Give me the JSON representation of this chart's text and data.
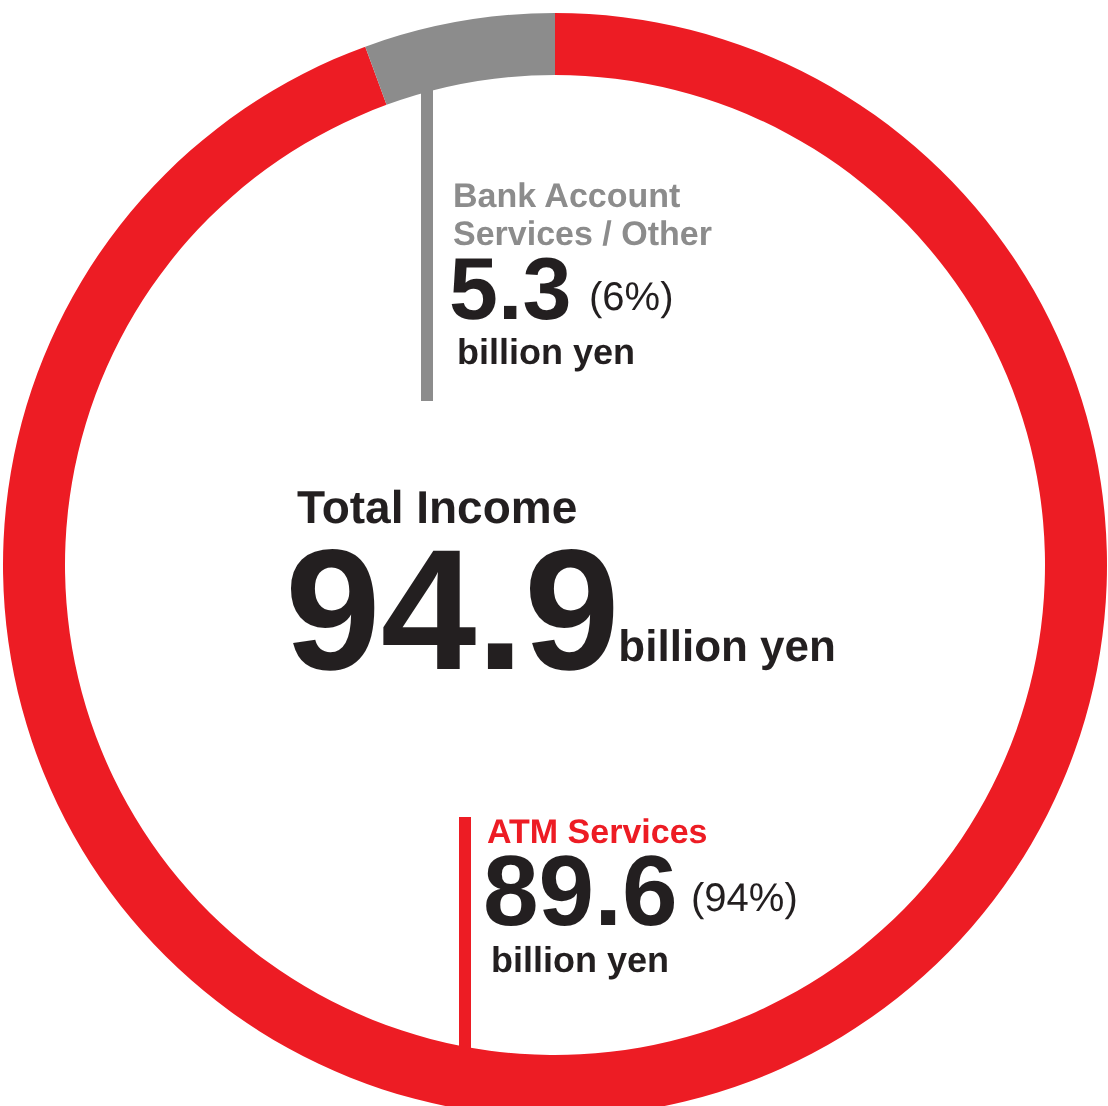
{
  "chart_data": {
    "type": "donut",
    "title": "Total Income",
    "categories": [
      "ATM Services",
      "Bank Account Services / Other"
    ],
    "values": [
      89.6,
      5.3
    ],
    "colors": [
      "#ed1c24",
      "#8c8c8c"
    ],
    "value_labels": [
      "89.6",
      "5.3"
    ],
    "annotations": [
      "(94%)",
      "billion yen",
      "(6%)",
      "billion yen",
      "94.9",
      "billion yen"
    ]
  }
}
